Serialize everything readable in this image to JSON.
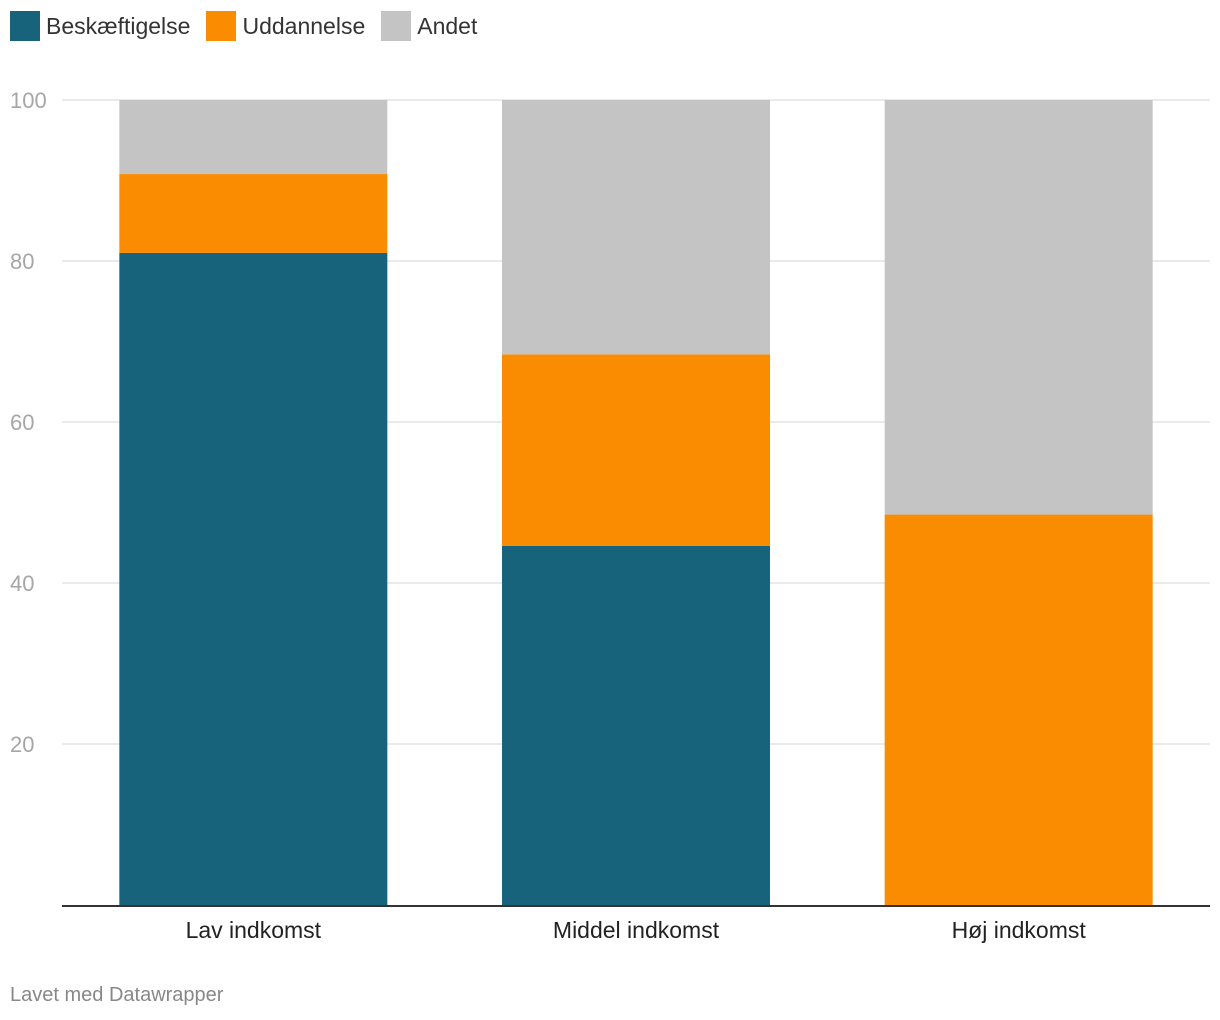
{
  "chart_data": {
    "type": "bar",
    "stacked": true,
    "categories": [
      "Lav indkomst",
      "Middel indkomst",
      "Høj indkomst"
    ],
    "series": [
      {
        "name": "Beskæftigelse",
        "color": "#17637c",
        "values": [
          81,
          44.6,
          0
        ]
      },
      {
        "name": "Uddannelse",
        "color": "#f98c00",
        "values": [
          9.8,
          23.8,
          48.5
        ]
      },
      {
        "name": "Andet",
        "color": "#c4c4c4",
        "values": [
          9.2,
          31.6,
          51.5
        ]
      }
    ],
    "ylim": [
      0,
      100
    ],
    "yticks": [
      20,
      40,
      60,
      80,
      100
    ],
    "ytick_labels": [
      "20",
      "40",
      "60",
      "80",
      "100"
    ],
    "grid": true,
    "legend_position": "top-left",
    "title": "",
    "xlabel": "",
    "ylabel": ""
  },
  "footer": {
    "credit": "Lavet med Datawrapper"
  }
}
